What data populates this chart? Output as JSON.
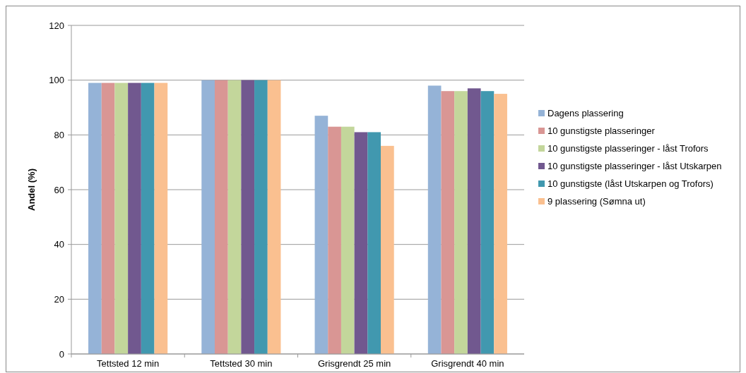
{
  "chart_data": {
    "type": "bar",
    "ylabel": "Andel (%)",
    "categories": [
      "Tettsted 12 min",
      "Tettsted 30 min",
      "Grisgrendt 25 min",
      "Grisgrendt 40 min"
    ],
    "series": [
      {
        "name": "Dagens plassering",
        "color": "#95b3d7",
        "values": [
          99,
          100,
          87,
          98
        ]
      },
      {
        "name": "10 gunstigste plasseringer",
        "color": "#d99694",
        "values": [
          99,
          100,
          83,
          96
        ]
      },
      {
        "name": "10 gunstigste plasseringer - låst Trofors",
        "color": "#c3d69b",
        "values": [
          99,
          100,
          83,
          96
        ]
      },
      {
        "name": "10 gunstigste plasseringer - låst Utskarpen",
        "color": "#71588f",
        "values": [
          99,
          100,
          81,
          97
        ]
      },
      {
        "name": "10 gunstigste (låst Utskarpen og Trofors)",
        "color": "#4198af",
        "values": [
          99,
          100,
          81,
          96
        ]
      },
      {
        "name": "9 plassering (Sømna ut)",
        "color": "#fac090",
        "values": [
          99,
          100,
          76,
          95
        ]
      }
    ],
    "ylim": [
      0,
      120
    ],
    "yticks": [
      0,
      20,
      40,
      60,
      80,
      100,
      120
    ],
    "grid": "y",
    "legend": "right"
  }
}
